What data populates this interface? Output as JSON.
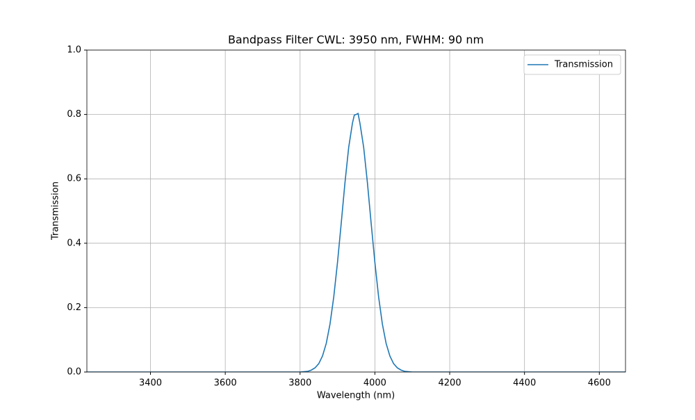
{
  "chart_data": {
    "type": "line",
    "title": "Bandpass Filter CWL: 3950 nm, FWHM: 90 nm",
    "xlabel": "Wavelength (nm)",
    "ylabel": "Transmission",
    "x": [
      3230,
      3790,
      3800,
      3810,
      3820,
      3830,
      3840,
      3850,
      3860,
      3870,
      3880,
      3890,
      3900,
      3910,
      3920,
      3930,
      3940,
      3945,
      3950,
      3955,
      3960,
      3970,
      3980,
      3990,
      4000,
      4010,
      4020,
      4030,
      4040,
      4050,
      4060,
      4070,
      4080,
      4090,
      4100,
      4670
    ],
    "series": [
      {
        "name": "Transmission",
        "color": "#1f77b4",
        "values": [
          0,
          0,
          0,
          0.001,
          0.002,
          0.006,
          0.013,
          0.026,
          0.05,
          0.089,
          0.149,
          0.233,
          0.34,
          0.462,
          0.588,
          0.698,
          0.773,
          0.798,
          0.8,
          0.803,
          0.773,
          0.698,
          0.588,
          0.462,
          0.34,
          0.233,
          0.149,
          0.089,
          0.05,
          0.026,
          0.013,
          0.006,
          0.002,
          0.001,
          0,
          0
        ]
      }
    ],
    "xlim": [
      3230,
      4670
    ],
    "ylim": [
      0,
      1
    ],
    "xticks": [
      3400,
      3600,
      3800,
      4000,
      4200,
      4400,
      4600
    ],
    "yticks": [
      {
        "value": 0,
        "label": "0.0"
      },
      0.2,
      0.4,
      0.6,
      0.8,
      {
        "value": 1,
        "label": "1.0"
      }
    ],
    "grid": true,
    "legend": "upper right"
  }
}
